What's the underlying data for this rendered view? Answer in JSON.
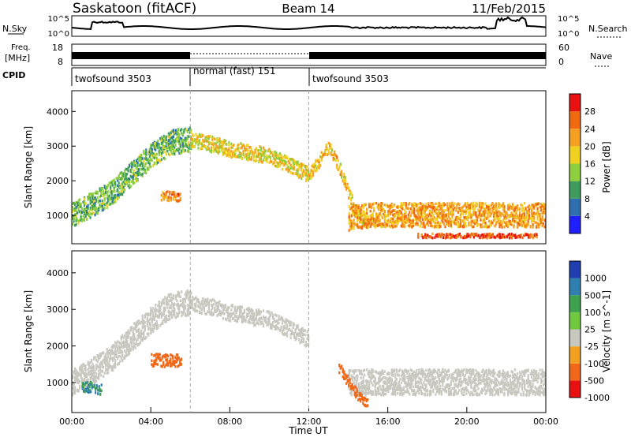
{
  "header": {
    "title": "Saskatoon (fitACF)",
    "beam": "Beam 14",
    "date": "11/Feb/2015"
  },
  "strips": {
    "nsky_label": "N.Sky",
    "nsky_ticks": [
      "10^5",
      "10^0"
    ],
    "nsearch_label": "N.Search",
    "freq_label_1": "Freq.",
    "freq_label_2": "[MHz]",
    "freq_ticks": [
      "18",
      "8"
    ],
    "nave_label": "Nave",
    "nave_ticks": [
      "60",
      "0"
    ],
    "cpid_label": "CPID",
    "cpid_segments": [
      {
        "label": "twofsound 3503",
        "start": 0,
        "end": 6
      },
      {
        "label": "normal (fast) 151",
        "start": 6,
        "end": 12
      },
      {
        "label": "twofsound 3503",
        "start": 12,
        "end": 24
      }
    ]
  },
  "colors": {
    "power": [
      "#1f1fff",
      "#2f6fb0",
      "#3f9c5c",
      "#8fcf3f",
      "#f0d020",
      "#f5a020",
      "#f06a10",
      "#e81010"
    ],
    "velocity": [
      "#1f3fb0",
      "#2f7fb0",
      "#3fa050",
      "#70c840",
      "#c8c8c0",
      "#f2a020",
      "#f06818",
      "#e81010"
    ]
  },
  "chart_data": [
    {
      "type": "heatmap",
      "name": "power",
      "title": "",
      "xlabel": "",
      "ylabel": "Slant Range [km]",
      "xlim": [
        0,
        24
      ],
      "ylim": [
        180,
        4600
      ],
      "y_ticks": [
        "1000",
        "2000",
        "3000",
        "4000"
      ],
      "colorbar_label": "Power [dB]",
      "colorbar_ticks": [
        "4",
        "8",
        "12",
        "16",
        "20",
        "24",
        "28"
      ],
      "colorbar_range": [
        0,
        32
      ],
      "patterns": [
        {
          "x": [
            0.0,
            1.0,
            2.0,
            3.0,
            4.0,
            5.0,
            6.0
          ],
          "y": [
            1000,
            1300,
            1650,
            2200,
            2700,
            3100,
            3180
          ],
          "value": 12,
          "width": 700
        },
        {
          "x": [
            6.0,
            7.0,
            8.0,
            9.0,
            10.0,
            11.0,
            12.0
          ],
          "y": [
            3150,
            3050,
            2900,
            2800,
            2700,
            2450,
            2150
          ],
          "value": 18,
          "width": 450
        },
        {
          "x": [
            12.0,
            12.5,
            13.0,
            13.5,
            14.0,
            14.5,
            15.0
          ],
          "y": [
            2150,
            2550,
            3000,
            2400,
            1600,
            1000,
            700
          ],
          "value": 20,
          "width": 350
        },
        {
          "x": [
            14.0,
            15.0,
            16.0,
            18.0,
            20.0,
            22.0,
            24.0
          ],
          "y": [
            900,
            1000,
            1000,
            1000,
            1000,
            1000,
            1000
          ],
          "value": 22,
          "width": 700
        },
        {
          "x": [
            17.5,
            19.0,
            20.5,
            22.0,
            23.5
          ],
          "y": [
            400,
            400,
            400,
            400,
            400
          ],
          "value": 28,
          "width": 120
        },
        {
          "x": [
            4.5,
            5.0,
            5.5
          ],
          "y": [
            1550,
            1550,
            1550
          ],
          "value": 24,
          "width": 300
        }
      ]
    },
    {
      "type": "heatmap",
      "name": "velocity",
      "title": "",
      "xlabel": "Time UT",
      "ylabel": "Slant Range [km]",
      "xlim": [
        0,
        24
      ],
      "ylim": [
        180,
        4600
      ],
      "x_ticks": [
        "00:00",
        "04:00",
        "08:00",
        "12:00",
        "16:00",
        "20:00",
        "00:00"
      ],
      "y_ticks": [
        "1000",
        "2000",
        "3000",
        "4000"
      ],
      "colorbar_label": "Velocity [m s^-1]",
      "colorbar_ticks": [
        "1000",
        "500",
        "100",
        "25",
        "-25",
        "-100",
        "-500",
        "-1000"
      ],
      "patterns": [
        {
          "x": [
            0.0,
            1.0,
            2.0,
            3.0,
            4.0,
            5.0,
            6.0
          ],
          "y": [
            1000,
            1300,
            1650,
            2200,
            2700,
            3100,
            3180
          ],
          "value": 0,
          "width": 700
        },
        {
          "x": [
            6.0,
            7.0,
            8.0,
            9.0,
            10.0,
            11.0,
            12.0
          ],
          "y": [
            3150,
            3050,
            2900,
            2800,
            2700,
            2450,
            2150
          ],
          "value": 0,
          "width": 450
        },
        {
          "x": [
            14.0,
            16.0,
            18.0,
            20.0,
            22.0,
            24.0
          ],
          "y": [
            1000,
            1000,
            1000,
            1000,
            1000,
            1000
          ],
          "value": 0,
          "width": 700
        },
        {
          "x": [
            4.0,
            4.5,
            5.0,
            5.5
          ],
          "y": [
            1600,
            1600,
            1600,
            1600
          ],
          "value": -300,
          "width": 350
        },
        {
          "x": [
            13.5,
            14.0,
            14.5,
            15.0
          ],
          "y": [
            1400,
            1000,
            600,
            450
          ],
          "value": -150,
          "width": 300
        },
        {
          "x": [
            0.5,
            1.0,
            1.5
          ],
          "y": [
            900,
            850,
            800
          ],
          "value": 100,
          "width": 300
        }
      ]
    }
  ]
}
